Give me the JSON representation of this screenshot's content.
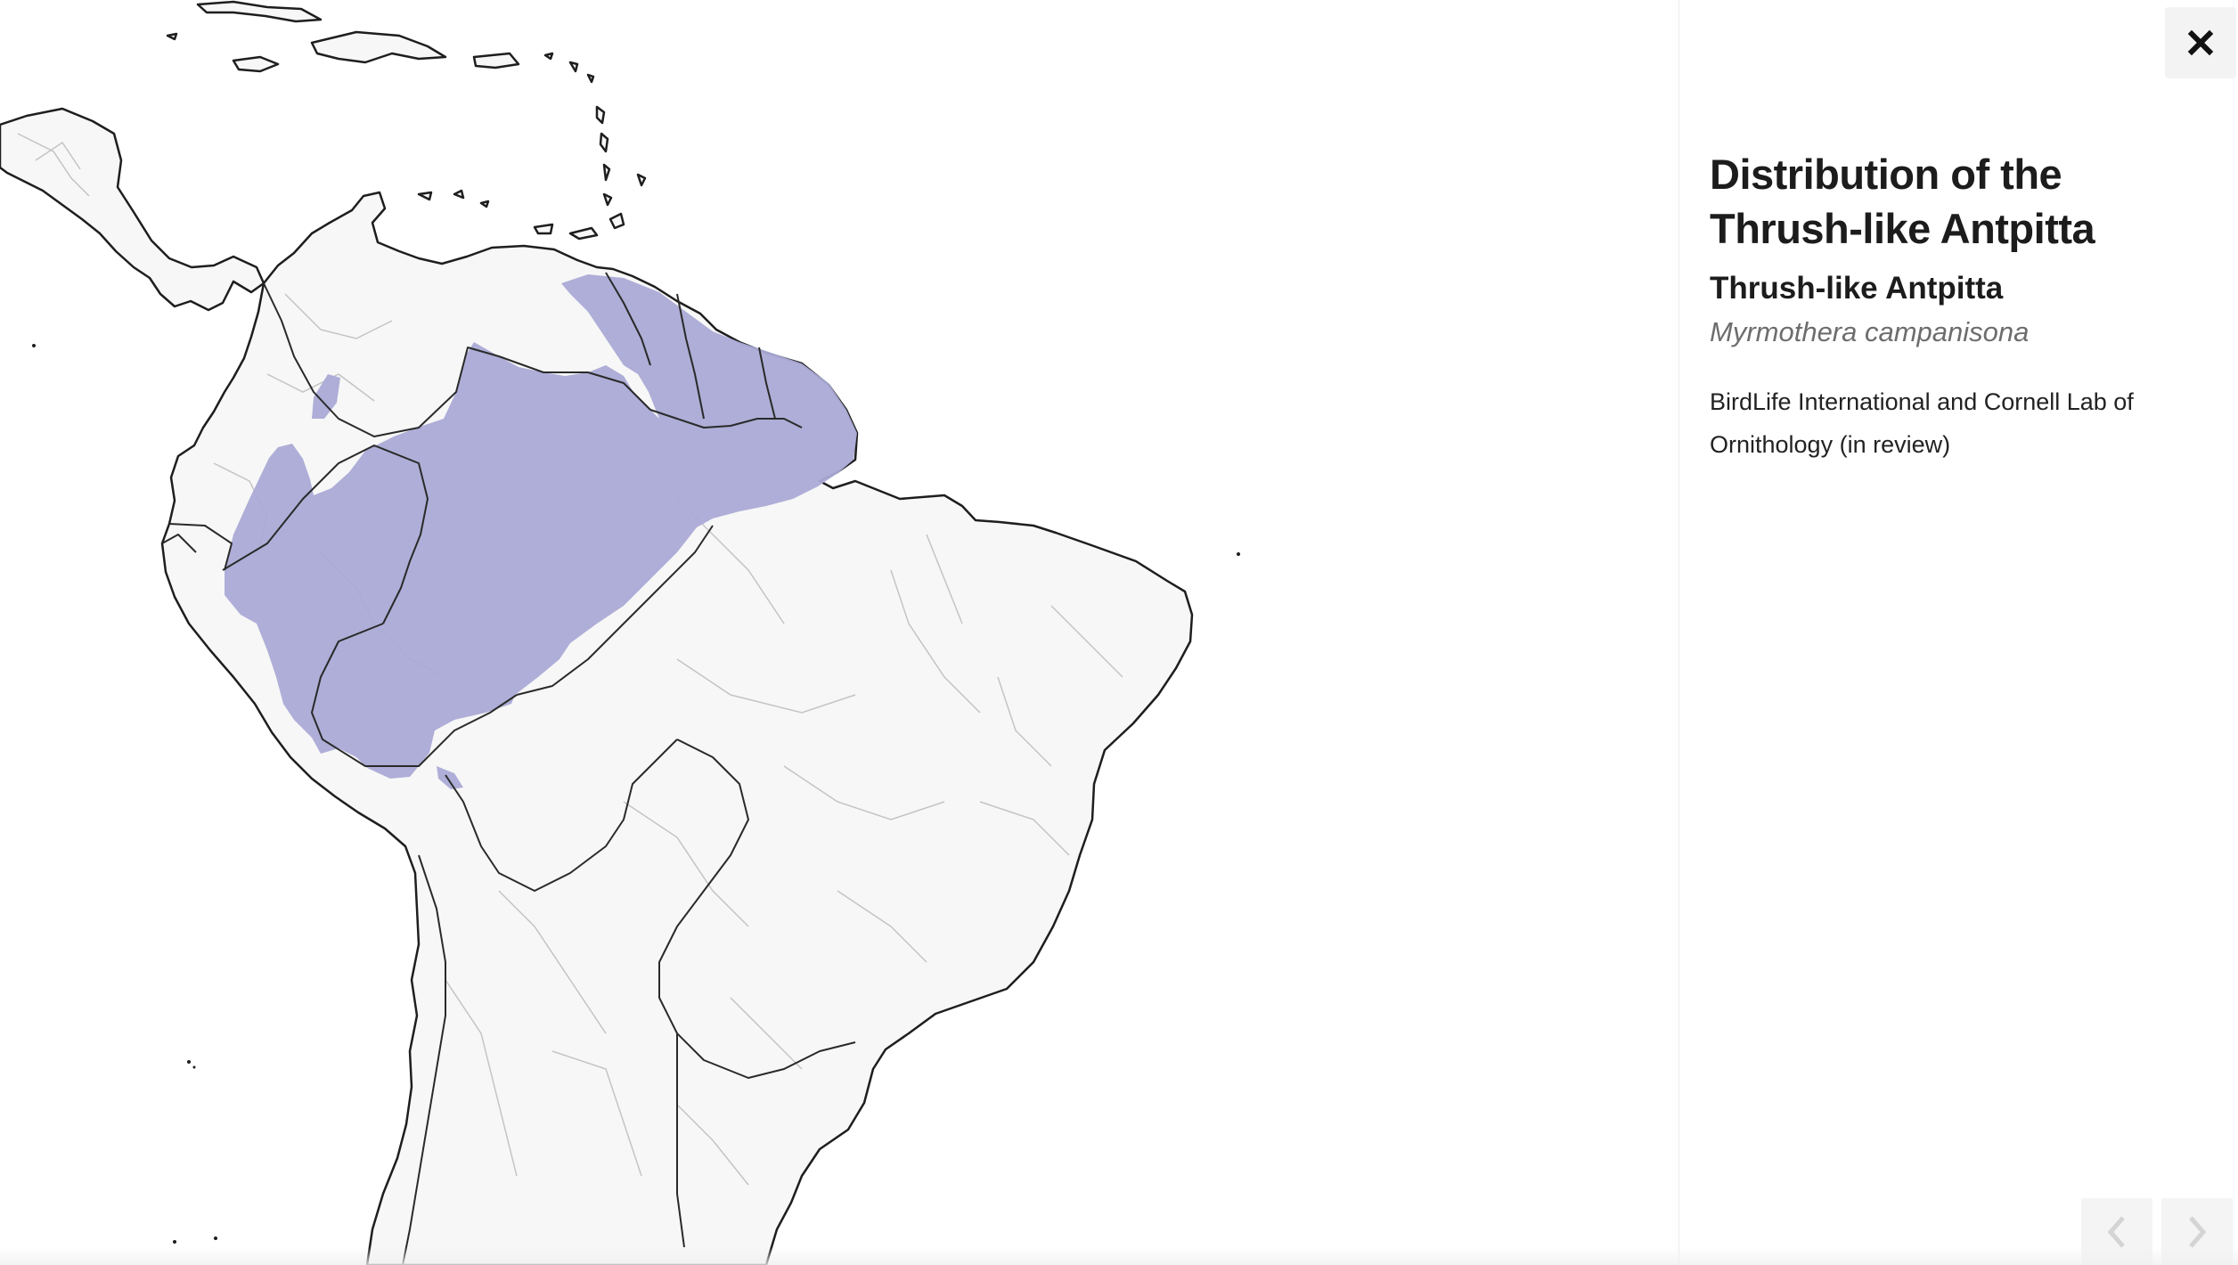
{
  "map": {
    "region": "South America",
    "range_color": "#aaaad6",
    "land_color": "#f7f7f7",
    "border_color": "#222222",
    "subdivision_color": "#c2c2c2",
    "icon_names": [
      "close-icon",
      "chevron-left-icon",
      "chevron-right-icon"
    ]
  },
  "panel": {
    "title": "Distribution of the Thrush-like Antpitta",
    "common_name": "Thrush-like Antpitta",
    "scientific_name": "Myrmothera campanisona",
    "credit": "BirdLife International and Cornell Lab of Ornithology (in review)"
  }
}
